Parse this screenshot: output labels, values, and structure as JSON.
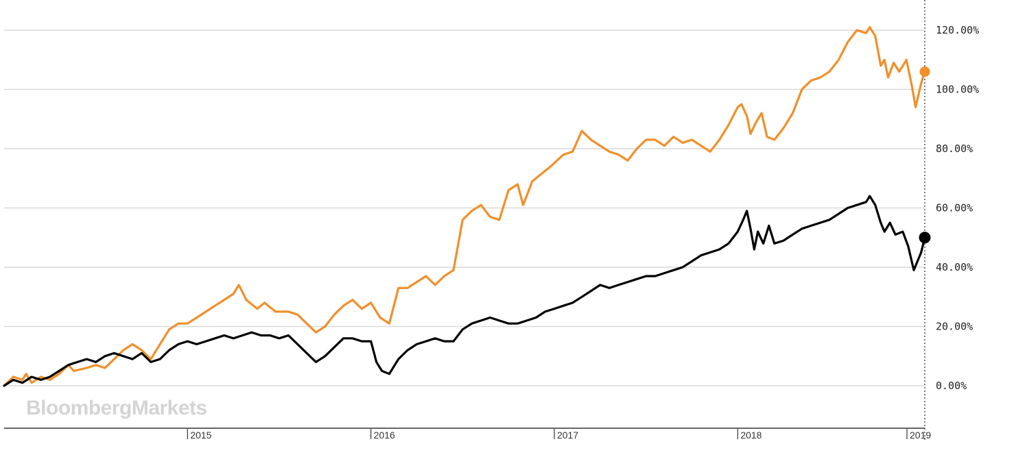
{
  "watermark": "BloombergMarkets",
  "chart_data": {
    "type": "line",
    "ylim": [
      -14,
      128
    ],
    "yticks": [
      0,
      20,
      40,
      60,
      80,
      100,
      120
    ],
    "ytick_labels": [
      "0.00%",
      "20.00%",
      "40.00%",
      "60.00%",
      "80.00%",
      "100.00%",
      "120.00%"
    ],
    "xlim": [
      2014.0,
      2019.02
    ],
    "xticks": [
      2015,
      2016,
      2017,
      2018,
      2019
    ],
    "xtick_labels": [
      "2015",
      "2016",
      "2017",
      "2018",
      "2019"
    ],
    "grid": true,
    "series": [
      {
        "name": "Orange series",
        "color": "#f18f2a",
        "points": [
          [
            2014.0,
            0
          ],
          [
            2014.05,
            3
          ],
          [
            2014.1,
            2
          ],
          [
            2014.12,
            4
          ],
          [
            2014.15,
            1
          ],
          [
            2014.2,
            3
          ],
          [
            2014.25,
            2
          ],
          [
            2014.3,
            4
          ],
          [
            2014.35,
            7
          ],
          [
            2014.38,
            5
          ],
          [
            2014.45,
            6
          ],
          [
            2014.5,
            7
          ],
          [
            2014.55,
            6
          ],
          [
            2014.6,
            9
          ],
          [
            2014.65,
            12
          ],
          [
            2014.7,
            14
          ],
          [
            2014.75,
            12
          ],
          [
            2014.8,
            9
          ],
          [
            2014.85,
            14
          ],
          [
            2014.9,
            19
          ],
          [
            2014.95,
            21
          ],
          [
            2015.0,
            21
          ],
          [
            2015.05,
            23
          ],
          [
            2015.1,
            25
          ],
          [
            2015.15,
            27
          ],
          [
            2015.2,
            29
          ],
          [
            2015.25,
            31
          ],
          [
            2015.28,
            34
          ],
          [
            2015.32,
            29
          ],
          [
            2015.38,
            26
          ],
          [
            2015.42,
            28
          ],
          [
            2015.48,
            25
          ],
          [
            2015.55,
            25
          ],
          [
            2015.6,
            24
          ],
          [
            2015.65,
            21
          ],
          [
            2015.7,
            18
          ],
          [
            2015.75,
            20
          ],
          [
            2015.8,
            24
          ],
          [
            2015.85,
            27
          ],
          [
            2015.9,
            29
          ],
          [
            2015.95,
            26
          ],
          [
            2016.0,
            28
          ],
          [
            2016.05,
            23
          ],
          [
            2016.1,
            21
          ],
          [
            2016.15,
            33
          ],
          [
            2016.2,
            33
          ],
          [
            2016.25,
            35
          ],
          [
            2016.3,
            37
          ],
          [
            2016.35,
            34
          ],
          [
            2016.4,
            37
          ],
          [
            2016.45,
            39
          ],
          [
            2016.5,
            56
          ],
          [
            2016.55,
            59
          ],
          [
            2016.6,
            61
          ],
          [
            2016.65,
            57
          ],
          [
            2016.7,
            56
          ],
          [
            2016.75,
            66
          ],
          [
            2016.8,
            68
          ],
          [
            2016.83,
            61
          ],
          [
            2016.88,
            69
          ],
          [
            2016.92,
            71
          ],
          [
            2016.98,
            74
          ],
          [
            2017.05,
            78
          ],
          [
            2017.1,
            79
          ],
          [
            2017.15,
            86
          ],
          [
            2017.2,
            83
          ],
          [
            2017.25,
            81
          ],
          [
            2017.3,
            79
          ],
          [
            2017.35,
            78
          ],
          [
            2017.4,
            76
          ],
          [
            2017.45,
            80
          ],
          [
            2017.5,
            83
          ],
          [
            2017.55,
            83
          ],
          [
            2017.6,
            81
          ],
          [
            2017.65,
            84
          ],
          [
            2017.7,
            82
          ],
          [
            2017.75,
            83
          ],
          [
            2017.8,
            81
          ],
          [
            2017.85,
            79
          ],
          [
            2017.9,
            83
          ],
          [
            2017.95,
            88
          ],
          [
            2018.0,
            94
          ],
          [
            2018.02,
            95
          ],
          [
            2018.05,
            91
          ],
          [
            2018.07,
            85
          ],
          [
            2018.1,
            89
          ],
          [
            2018.13,
            92
          ],
          [
            2018.16,
            84
          ],
          [
            2018.2,
            83
          ],
          [
            2018.25,
            87
          ],
          [
            2018.3,
            92
          ],
          [
            2018.35,
            100
          ],
          [
            2018.4,
            103
          ],
          [
            2018.45,
            104
          ],
          [
            2018.5,
            106
          ],
          [
            2018.55,
            110
          ],
          [
            2018.6,
            116
          ],
          [
            2018.65,
            120
          ],
          [
            2018.7,
            119
          ],
          [
            2018.72,
            121
          ],
          [
            2018.75,
            118
          ],
          [
            2018.78,
            108
          ],
          [
            2018.8,
            110
          ],
          [
            2018.82,
            104
          ],
          [
            2018.85,
            109
          ],
          [
            2018.88,
            106
          ],
          [
            2018.92,
            110
          ],
          [
            2018.95,
            101
          ],
          [
            2018.97,
            94
          ],
          [
            2019.0,
            102
          ],
          [
            2019.02,
            106
          ]
        ]
      },
      {
        "name": "Black series",
        "color": "#000000",
        "points": [
          [
            2014.0,
            0
          ],
          [
            2014.05,
            2
          ],
          [
            2014.1,
            1
          ],
          [
            2014.15,
            3
          ],
          [
            2014.2,
            2
          ],
          [
            2014.25,
            3
          ],
          [
            2014.3,
            5
          ],
          [
            2014.35,
            7
          ],
          [
            2014.4,
            8
          ],
          [
            2014.45,
            9
          ],
          [
            2014.5,
            8
          ],
          [
            2014.55,
            10
          ],
          [
            2014.6,
            11
          ],
          [
            2014.65,
            10
          ],
          [
            2014.7,
            9
          ],
          [
            2014.75,
            11
          ],
          [
            2014.8,
            8
          ],
          [
            2014.85,
            9
          ],
          [
            2014.9,
            12
          ],
          [
            2014.95,
            14
          ],
          [
            2015.0,
            15
          ],
          [
            2015.05,
            14
          ],
          [
            2015.1,
            15
          ],
          [
            2015.15,
            16
          ],
          [
            2015.2,
            17
          ],
          [
            2015.25,
            16
          ],
          [
            2015.3,
            17
          ],
          [
            2015.35,
            18
          ],
          [
            2015.4,
            17
          ],
          [
            2015.45,
            17
          ],
          [
            2015.5,
            16
          ],
          [
            2015.55,
            17
          ],
          [
            2015.6,
            14
          ],
          [
            2015.65,
            11
          ],
          [
            2015.7,
            8
          ],
          [
            2015.75,
            10
          ],
          [
            2015.8,
            13
          ],
          [
            2015.85,
            16
          ],
          [
            2015.9,
            16
          ],
          [
            2015.95,
            15
          ],
          [
            2016.0,
            15
          ],
          [
            2016.03,
            8
          ],
          [
            2016.06,
            5
          ],
          [
            2016.1,
            4
          ],
          [
            2016.15,
            9
          ],
          [
            2016.2,
            12
          ],
          [
            2016.25,
            14
          ],
          [
            2016.3,
            15
          ],
          [
            2016.35,
            16
          ],
          [
            2016.4,
            15
          ],
          [
            2016.45,
            15
          ],
          [
            2016.5,
            19
          ],
          [
            2016.55,
            21
          ],
          [
            2016.6,
            22
          ],
          [
            2016.65,
            23
          ],
          [
            2016.7,
            22
          ],
          [
            2016.75,
            21
          ],
          [
            2016.8,
            21
          ],
          [
            2016.85,
            22
          ],
          [
            2016.9,
            23
          ],
          [
            2016.95,
            25
          ],
          [
            2017.0,
            26
          ],
          [
            2017.05,
            27
          ],
          [
            2017.1,
            28
          ],
          [
            2017.15,
            30
          ],
          [
            2017.2,
            32
          ],
          [
            2017.25,
            34
          ],
          [
            2017.3,
            33
          ],
          [
            2017.35,
            34
          ],
          [
            2017.4,
            35
          ],
          [
            2017.45,
            36
          ],
          [
            2017.5,
            37
          ],
          [
            2017.55,
            37
          ],
          [
            2017.6,
            38
          ],
          [
            2017.65,
            39
          ],
          [
            2017.7,
            40
          ],
          [
            2017.75,
            42
          ],
          [
            2017.8,
            44
          ],
          [
            2017.85,
            45
          ],
          [
            2017.9,
            46
          ],
          [
            2017.95,
            48
          ],
          [
            2018.0,
            52
          ],
          [
            2018.03,
            56
          ],
          [
            2018.05,
            59
          ],
          [
            2018.07,
            53
          ],
          [
            2018.09,
            46
          ],
          [
            2018.11,
            52
          ],
          [
            2018.14,
            48
          ],
          [
            2018.17,
            54
          ],
          [
            2018.2,
            48
          ],
          [
            2018.25,
            49
          ],
          [
            2018.3,
            51
          ],
          [
            2018.35,
            53
          ],
          [
            2018.4,
            54
          ],
          [
            2018.45,
            55
          ],
          [
            2018.5,
            56
          ],
          [
            2018.55,
            58
          ],
          [
            2018.6,
            60
          ],
          [
            2018.65,
            61
          ],
          [
            2018.7,
            62
          ],
          [
            2018.72,
            64
          ],
          [
            2018.75,
            61
          ],
          [
            2018.78,
            55
          ],
          [
            2018.8,
            52
          ],
          [
            2018.83,
            55
          ],
          [
            2018.86,
            51
          ],
          [
            2018.9,
            52
          ],
          [
            2018.93,
            47
          ],
          [
            2018.96,
            39
          ],
          [
            2019.0,
            45
          ],
          [
            2019.02,
            50
          ]
        ]
      }
    ]
  }
}
